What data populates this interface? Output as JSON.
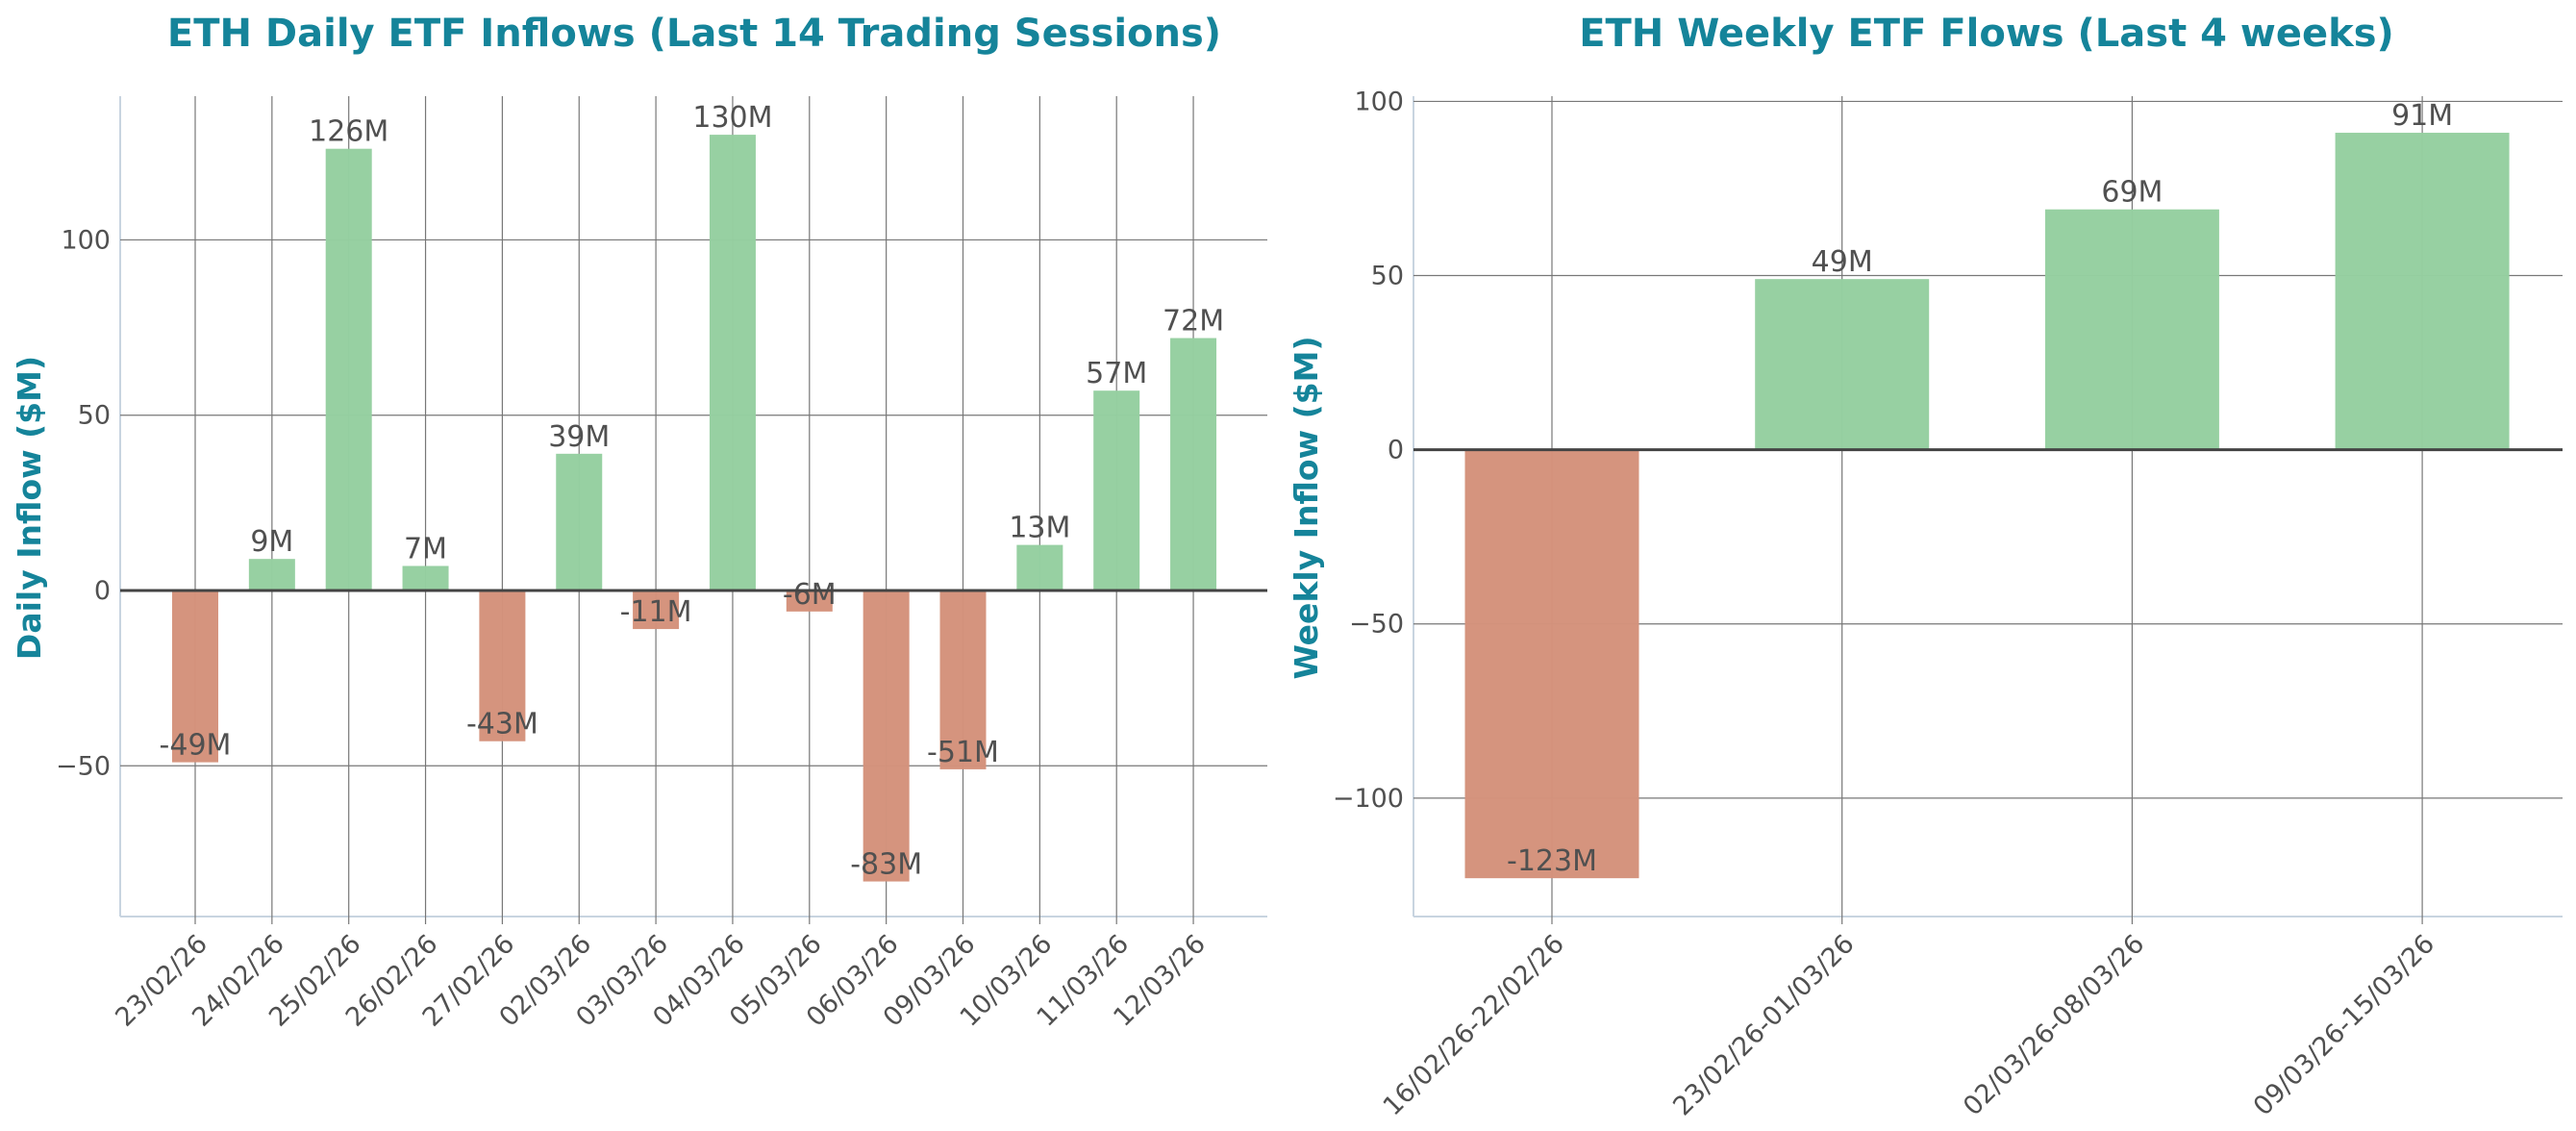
{
  "colors": {
    "positive": "#95cfa0",
    "negative": "#d4927b",
    "title": "#15849a",
    "grid": "#777777",
    "zero_line": "#444444",
    "axis": "#c8d4e0"
  },
  "chart_data": [
    {
      "type": "bar",
      "title": "ETH Daily ETF Inflows (Last 14 Trading Sessions)",
      "xlabel": "",
      "ylabel": "Daily Inflow ($M)",
      "categories": [
        "23/02/26",
        "24/02/26",
        "25/02/26",
        "26/02/26",
        "27/02/26",
        "02/03/26",
        "03/03/26",
        "04/03/26",
        "05/03/26",
        "06/03/26",
        "09/03/26",
        "10/03/26",
        "11/03/26",
        "12/03/26"
      ],
      "values": [
        -49,
        9,
        126,
        7,
        -43,
        39,
        -11,
        130,
        -6,
        -83,
        -51,
        13,
        57,
        72
      ],
      "data_labels": [
        "-49M",
        "9M",
        "126M",
        "7M",
        "-43M",
        "39M",
        "-11M",
        "130M",
        "-6M",
        "-83M",
        "-51M",
        "13M",
        "57M",
        "72M"
      ],
      "yticks": [
        -50,
        0,
        50,
        100
      ],
      "ytick_labels": [
        "−50",
        "0",
        "50",
        "100"
      ],
      "ylim": [
        -93,
        141
      ],
      "grid": true
    },
    {
      "type": "bar",
      "title": "ETH Weekly ETF Flows (Last 4 weeks)",
      "xlabel": "",
      "ylabel": "Weekly Inflow ($M)",
      "categories": [
        "16/02/26-22/02/26",
        "23/02/26-01/03/26",
        "02/03/26-08/03/26",
        "09/03/26-15/03/26"
      ],
      "values": [
        -123,
        49,
        69,
        91
      ],
      "data_labels": [
        "-123M",
        "49M",
        "69M",
        "91M"
      ],
      "yticks": [
        -100,
        -50,
        0,
        50,
        100
      ],
      "ytick_labels": [
        "−100",
        "−50",
        "0",
        "50",
        "100"
      ],
      "ylim": [
        -134,
        101.5
      ],
      "grid": true
    }
  ]
}
